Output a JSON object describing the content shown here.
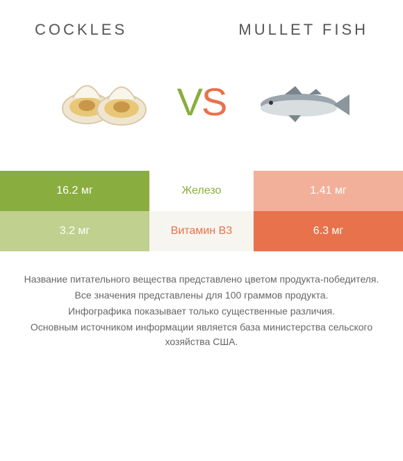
{
  "header": {
    "left_title": "Cockles",
    "right_title": "Mullet fish"
  },
  "vs": {
    "v": "V",
    "s": "S"
  },
  "colors": {
    "left_primary": "#8aad3f",
    "left_dim": "#c0d08f",
    "right_primary": "#e8724b",
    "right_dim": "#f2b09a",
    "mid_text_left_win": "#8aad3f",
    "mid_text_right_win": "#e8724b",
    "row_alt_bg": "#f7f5f0",
    "row_bg": "#ffffff"
  },
  "rows": [
    {
      "nutrient": "Железо",
      "left_value": "16.2 мг",
      "right_value": "1.41 мг",
      "winner": "left"
    },
    {
      "nutrient": "Витамин B3",
      "left_value": "3.2 мг",
      "right_value": "6.3 мг",
      "winner": "right"
    }
  ],
  "footer_lines": [
    "Название питательного вещества представлено цветом продукта-победителя.",
    "Все значения представлены для 100 граммов продукта.",
    "Инфографика показывает только существенные различия.",
    "Основным источником информации является база министерства сельского хозяйства США."
  ],
  "icons": {
    "left_food": "cockles",
    "right_food": "mullet-fish"
  }
}
